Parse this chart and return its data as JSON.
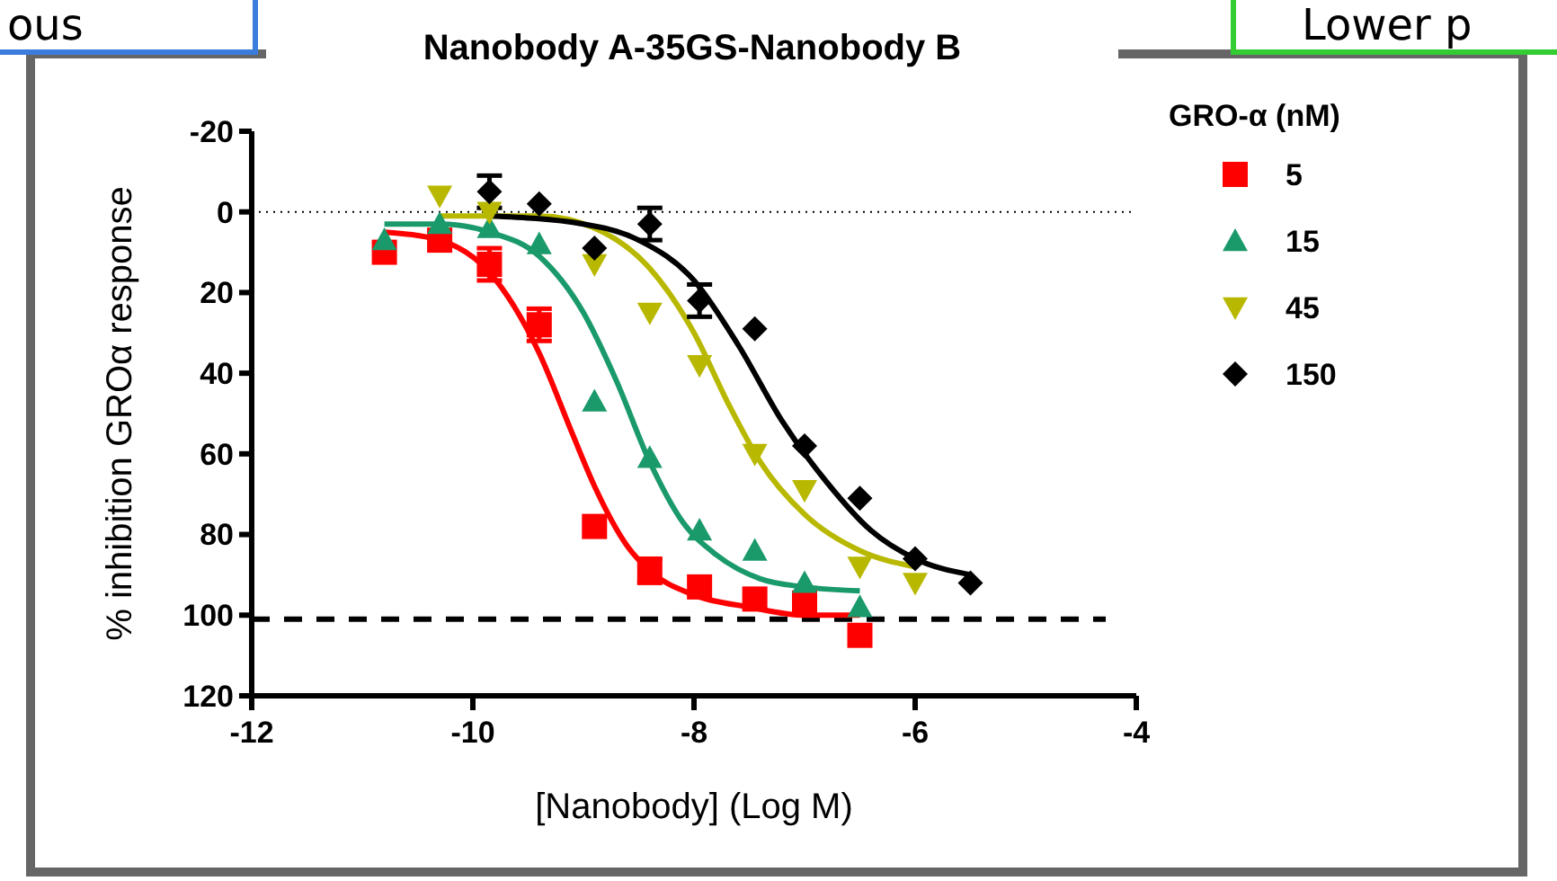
{
  "chart_data": {
    "type": "scatter",
    "title": "Nanobody A-35GS-Nanobody B",
    "xlabel": "[Nanobody] (Log M)",
    "ylabel": "% inhibition GROα response",
    "legend_title": "GRO-α (nM)",
    "legend": "right",
    "xlim": [
      -12,
      -4
    ],
    "xticks": [
      -12,
      -10,
      -8,
      -6,
      -4
    ],
    "ylim": [
      120,
      -20
    ],
    "yticks": [
      -20,
      0,
      20,
      40,
      60,
      80,
      100,
      120
    ],
    "annotations": [
      "ous",
      "Lower p"
    ],
    "ref_lines": [
      {
        "axis": "y",
        "value": 0,
        "color": "#000000",
        "line_style": "dotted"
      },
      {
        "axis": "y",
        "value": 101,
        "color": "#000000",
        "line_style": "dashed"
      }
    ],
    "series": [
      {
        "name": "5",
        "marker": "square",
        "color": "#ff0000",
        "x": [
          -10.8,
          -10.3,
          -9.85,
          -9.4,
          -8.9,
          -8.4,
          -7.95,
          -7.45,
          -7,
          -6.5
        ],
        "values": [
          10,
          7,
          13,
          28,
          78,
          89,
          93,
          96,
          97,
          105
        ],
        "errors": [
          null,
          null,
          4,
          4,
          null,
          3,
          null,
          null,
          null,
          null
        ]
      },
      {
        "name": "15",
        "marker": "triangle",
        "color": "#1a9a6a",
        "x": [
          -10.8,
          -10.3,
          -9.85,
          -9.4,
          -8.9,
          -8.4,
          -7.95,
          -7.45,
          -7,
          -6.5
        ],
        "values": [
          7,
          3,
          4,
          8,
          47,
          61,
          79,
          84,
          92,
          98
        ]
      },
      {
        "name": "45",
        "marker": "triangle-down",
        "color": "#b8b800",
        "x": [
          -10.3,
          -9.85,
          -8.9,
          -8.4,
          -7.95,
          -7.45,
          -7,
          -6.5,
          -6
        ],
        "values": [
          -4,
          0,
          13,
          25,
          38,
          60,
          69,
          88,
          92
        ]
      },
      {
        "name": "150",
        "marker": "diamond",
        "color": "#000000",
        "x": [
          -9.85,
          -9.4,
          -8.9,
          -8.4,
          -7.95,
          -7.45,
          -7,
          -6.5,
          -6,
          -5.5
        ],
        "values": [
          -5,
          -2,
          9,
          3,
          22,
          29,
          58,
          71,
          86,
          92
        ],
        "errors": [
          4,
          null,
          null,
          4,
          4,
          null,
          null,
          null,
          null,
          null
        ]
      },
      {
        "type": "line",
        "color": "#ff0000",
        "x": [
          -10.8,
          -10.3,
          -9.85,
          -9.4,
          -9.1,
          -8.9,
          -8.6,
          -8.4,
          -8,
          -7.5,
          -7,
          -6.5
        ],
        "values": [
          5,
          7,
          15,
          35,
          55,
          68,
          83,
          89,
          95,
          98,
          100,
          100
        ]
      },
      {
        "type": "line",
        "color": "#1a9a6a",
        "x": [
          -10.8,
          -10.3,
          -9.85,
          -9.4,
          -9,
          -8.7,
          -8.4,
          -8.1,
          -7.8,
          -7.4,
          -7,
          -6.5
        ],
        "values": [
          3,
          3,
          5,
          11,
          25,
          42,
          62,
          77,
          85,
          91,
          93,
          94
        ]
      },
      {
        "type": "line",
        "color": "#b8b800",
        "x": [
          -10.3,
          -9.4,
          -8.9,
          -8.4,
          -8,
          -7.7,
          -7.4,
          -7,
          -6.5,
          -6
        ],
        "values": [
          1,
          1,
          4,
          14,
          30,
          47,
          62,
          75,
          84,
          88
        ]
      },
      {
        "type": "line",
        "color": "#000000",
        "x": [
          -9.85,
          -9,
          -8.5,
          -8,
          -7.6,
          -7.2,
          -6.8,
          -6.4,
          -6,
          -5.5
        ],
        "values": [
          1,
          3,
          7,
          17,
          33,
          52,
          67,
          79,
          86,
          90
        ]
      }
    ]
  }
}
